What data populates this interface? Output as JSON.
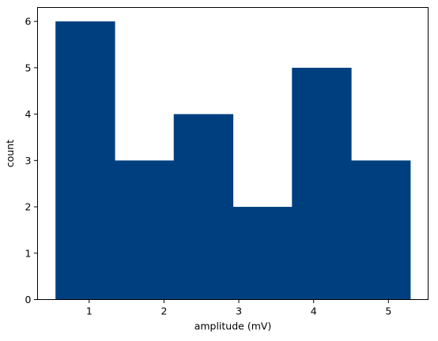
{
  "chart_data": {
    "type": "bar",
    "subtype": "histogram",
    "title": "",
    "xlabel": "amplitude (mV)",
    "ylabel": "count",
    "bins": [
      {
        "start": 0.55,
        "end": 1.34,
        "count": 6
      },
      {
        "start": 1.34,
        "end": 2.13,
        "count": 3
      },
      {
        "start": 2.13,
        "end": 2.92,
        "count": 4
      },
      {
        "start": 2.92,
        "end": 3.71,
        "count": 2
      },
      {
        "start": 3.71,
        "end": 4.5,
        "count": 5
      },
      {
        "start": 4.5,
        "end": 5.29,
        "count": 3
      }
    ],
    "xlim": [
      0.31,
      5.53
    ],
    "ylim": [
      0,
      6.3
    ],
    "xticks": [
      1,
      2,
      3,
      4,
      5
    ],
    "yticks": [
      0,
      1,
      2,
      3,
      4,
      5,
      6
    ],
    "grid": false,
    "bar_color": "#003f7f"
  }
}
